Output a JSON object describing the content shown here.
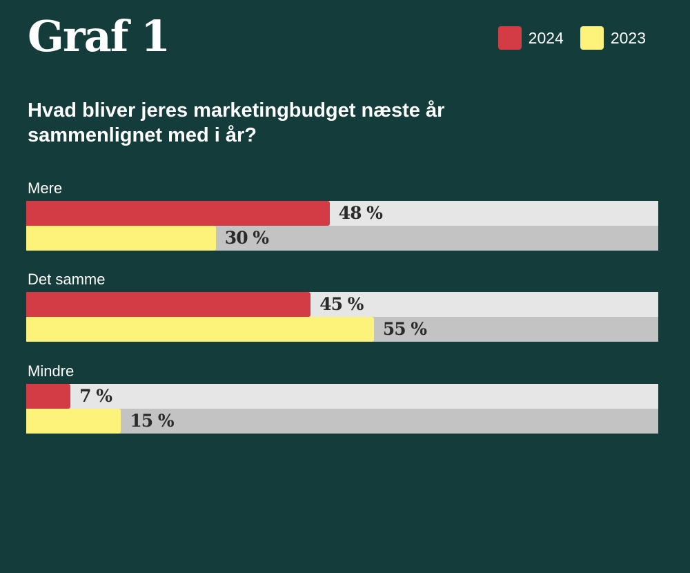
{
  "header": {
    "title": "Graf 1"
  },
  "legend": [
    {
      "label": "2024",
      "color": "#d33c45"
    },
    {
      "label": "2023",
      "color": "#fdf27a"
    }
  ],
  "question": "Hvad bliver jeres marketingbudget næste år sammenlignet med i år?",
  "chart_data": {
    "type": "bar",
    "orientation": "horizontal",
    "categories": [
      "Mere",
      "Det samme",
      "Mindre"
    ],
    "series": [
      {
        "name": "2024",
        "color": "#d33c45",
        "values": [
          48,
          45,
          7
        ],
        "labels": [
          "48 %",
          "45 %",
          "7 %"
        ]
      },
      {
        "name": "2023",
        "color": "#fdf27a",
        "values": [
          30,
          55,
          15
        ],
        "labels": [
          "30 %",
          "55 %",
          "15 %"
        ]
      }
    ],
    "xlim": [
      0,
      100
    ],
    "track_colors": [
      "#e6e6e6",
      "#c3c3c3"
    ],
    "grid": false,
    "legend_position": "top-right"
  }
}
